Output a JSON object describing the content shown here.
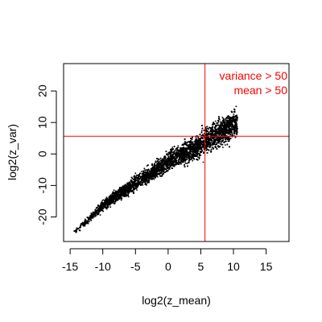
{
  "chart_data": {
    "type": "scatter",
    "title": "",
    "xlabel": "log2(z_mean)",
    "ylabel": "log2(z_var)",
    "xlim": [
      -16,
      18.5
    ],
    "ylim": [
      -27.8,
      28.7
    ],
    "x_ticks": [
      -15,
      -10,
      -5,
      0,
      5,
      10,
      15
    ],
    "x_tick_labels": [
      "-15",
      "-10",
      "-5",
      "0",
      "5",
      "10",
      "15"
    ],
    "y_ticks": [
      -20,
      -10,
      0,
      10,
      20
    ],
    "y_tick_labels": [
      "-20",
      "-10",
      "0",
      "10",
      "20"
    ],
    "grid": false,
    "point_color": "#000000",
    "density_band": {
      "x_start": -14.5,
      "x_end": 10.5,
      "y_trend_points": [
        [
          -14.5,
          -25
        ],
        [
          -10,
          -16
        ],
        [
          -5,
          -9
        ],
        [
          0,
          -2
        ],
        [
          5,
          3
        ],
        [
          10,
          9
        ]
      ],
      "description_note": null
    },
    "reference_lines": [
      {
        "orientation": "vertical",
        "value": 5.64,
        "color": "#ff0000"
      },
      {
        "orientation": "horizontal",
        "value": 5.64,
        "color": "#ff0000"
      }
    ],
    "annotations": [
      {
        "text": "variance > 50",
        "color": "#ff0000",
        "placement": "top-right"
      },
      {
        "text": "mean > 50",
        "color": "#ff0000",
        "placement": "top-right"
      }
    ]
  }
}
